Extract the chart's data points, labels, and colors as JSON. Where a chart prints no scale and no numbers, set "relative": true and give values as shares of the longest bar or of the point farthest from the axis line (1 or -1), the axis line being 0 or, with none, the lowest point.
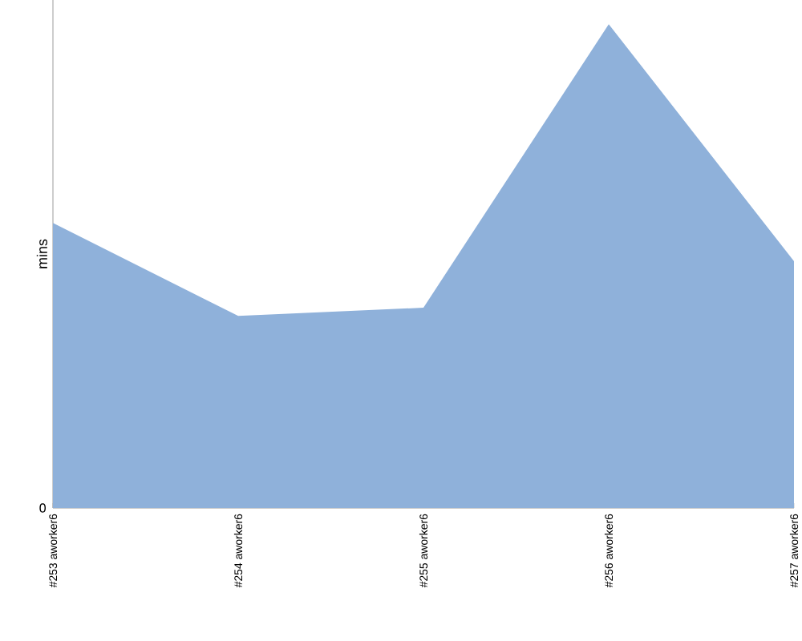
{
  "chart_data": {
    "type": "area",
    "relative": true,
    "ylabel": "mins",
    "categories": [
      "#253 aworker6",
      "#254 aworker6",
      "#255 aworker6",
      "#256 aworker6",
      "#257 aworker6"
    ],
    "series": [
      {
        "color": "#8fb1da",
        "values": [
          0.589,
          0.397,
          0.414,
          1,
          0.51
        ]
      }
    ],
    "annotations": [
      "0"
    ]
  }
}
